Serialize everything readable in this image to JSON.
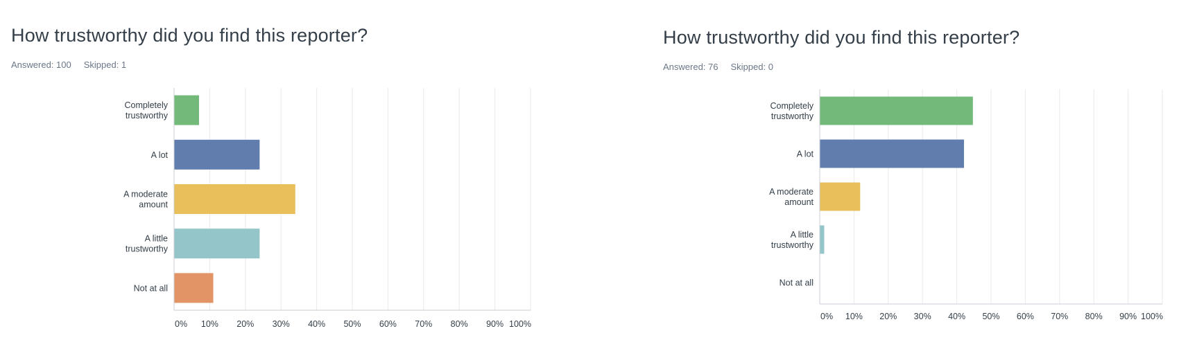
{
  "chart_data": [
    {
      "type": "bar",
      "orientation": "horizontal",
      "title": "How trustworthy did you find this reporter?",
      "answered_label": "Answered: 100",
      "skipped_label": "Skipped: 1",
      "categories": [
        [
          "Completely",
          "trustworthy"
        ],
        [
          "A lot"
        ],
        [
          "A moderate",
          "amount"
        ],
        [
          "A little",
          "trustworthy"
        ],
        [
          "Not at all"
        ]
      ],
      "values": [
        7,
        24,
        34,
        24,
        11
      ],
      "colors": [
        "#73b97a",
        "#617dae",
        "#e9bf5b",
        "#93c5c9",
        "#e39466"
      ],
      "xlim": [
        0,
        100
      ],
      "xticks": [
        "0%",
        "10%",
        "20%",
        "30%",
        "40%",
        "50%",
        "60%",
        "70%",
        "80%",
        "90%",
        "100%"
      ],
      "grid": true
    },
    {
      "type": "bar",
      "orientation": "horizontal",
      "title": "How trustworthy did you find this reporter?",
      "answered_label": "Answered: 76",
      "skipped_label": "Skipped: 0",
      "categories": [
        [
          "Completely",
          "trustworthy"
        ],
        [
          "A lot"
        ],
        [
          "A moderate",
          "amount"
        ],
        [
          "A little",
          "trustworthy"
        ],
        [
          "Not at all"
        ]
      ],
      "values": [
        44.7,
        42.1,
        11.8,
        1.3,
        0
      ],
      "colors": [
        "#73b97a",
        "#617dae",
        "#e9bf5b",
        "#93c5c9",
        "#e39466"
      ],
      "xlim": [
        0,
        100
      ],
      "xticks": [
        "0%",
        "10%",
        "20%",
        "30%",
        "40%",
        "50%",
        "60%",
        "70%",
        "80%",
        "90%",
        "100%"
      ],
      "grid": true
    }
  ]
}
